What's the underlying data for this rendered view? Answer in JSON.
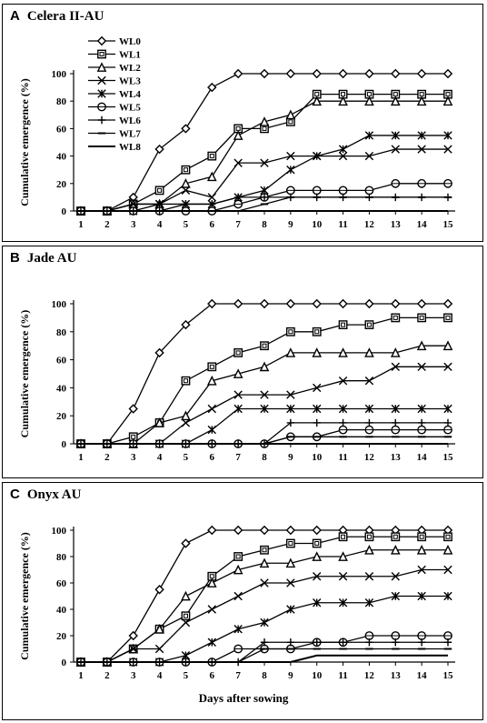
{
  "figure": {
    "xlabel": "Days after sowing"
  },
  "chart_data": [
    {
      "type": "line",
      "panel_letter": "A",
      "title": "Celera II-AU",
      "xlabel": "",
      "ylabel": "Cumulative emergence (%)",
      "x": [
        1,
        2,
        3,
        4,
        5,
        6,
        7,
        8,
        9,
        10,
        11,
        12,
        13,
        14,
        15
      ],
      "xlim": [
        1,
        15
      ],
      "ylim": [
        0,
        100
      ],
      "yticks": [
        0,
        20,
        40,
        60,
        80,
        100
      ],
      "legend": "top-left",
      "series": [
        {
          "name": "WL0",
          "marker": "diamond",
          "values": [
            0,
            0,
            10,
            45,
            60,
            90,
            100,
            100,
            100,
            100,
            100,
            100,
            100,
            100,
            100
          ]
        },
        {
          "name": "WL1",
          "marker": "square",
          "values": [
            0,
            0,
            5,
            15,
            30,
            40,
            60,
            60,
            65,
            85,
            85,
            85,
            85,
            85,
            85
          ]
        },
        {
          "name": "WL2",
          "marker": "triangle",
          "values": [
            0,
            0,
            5,
            5,
            20,
            25,
            55,
            65,
            70,
            80,
            80,
            80,
            80,
            80,
            80
          ]
        },
        {
          "name": "WL3",
          "marker": "x",
          "values": [
            0,
            0,
            5,
            5,
            15,
            10,
            35,
            35,
            40,
            40,
            40,
            40,
            45,
            45,
            45
          ]
        },
        {
          "name": "WL4",
          "marker": "star",
          "values": [
            0,
            0,
            0,
            5,
            5,
            5,
            10,
            15,
            30,
            40,
            45,
            55,
            55,
            55,
            55
          ]
        },
        {
          "name": "WL5",
          "marker": "circle",
          "values": [
            0,
            0,
            0,
            0,
            0,
            0,
            5,
            10,
            15,
            15,
            15,
            15,
            20,
            20,
            20
          ]
        },
        {
          "name": "WL6",
          "marker": "plus",
          "values": [
            0,
            0,
            0,
            0,
            5,
            5,
            10,
            10,
            10,
            10,
            10,
            10,
            10,
            10,
            10
          ]
        },
        {
          "name": "WL7",
          "marker": "dash",
          "values": [
            0,
            0,
            0,
            0,
            0,
            0,
            0,
            5,
            10,
            10,
            10,
            10,
            10,
            10,
            10
          ]
        },
        {
          "name": "WL8",
          "marker": "none",
          "values": [
            0,
            0,
            0,
            0,
            0,
            0,
            0,
            0,
            0,
            0,
            0,
            0,
            0,
            0,
            0
          ]
        }
      ]
    },
    {
      "type": "line",
      "panel_letter": "B",
      "title": "Jade AU",
      "xlabel": "",
      "ylabel": "Cumulative emergence (%)",
      "x": [
        1,
        2,
        3,
        4,
        5,
        6,
        7,
        8,
        9,
        10,
        11,
        12,
        13,
        14,
        15
      ],
      "xlim": [
        1,
        15
      ],
      "ylim": [
        0,
        100
      ],
      "yticks": [
        0,
        20,
        40,
        60,
        80,
        100
      ],
      "legend": "none",
      "series": [
        {
          "name": "WL0",
          "marker": "diamond",
          "values": [
            0,
            0,
            25,
            65,
            85,
            100,
            100,
            100,
            100,
            100,
            100,
            100,
            100,
            100,
            100
          ]
        },
        {
          "name": "WL1",
          "marker": "square",
          "values": [
            0,
            0,
            5,
            15,
            45,
            55,
            65,
            70,
            80,
            80,
            85,
            85,
            90,
            90,
            90
          ]
        },
        {
          "name": "WL2",
          "marker": "triangle",
          "values": [
            0,
            0,
            0,
            15,
            20,
            45,
            50,
            55,
            65,
            65,
            65,
            65,
            65,
            70,
            70
          ]
        },
        {
          "name": "WL3",
          "marker": "x",
          "values": [
            0,
            0,
            0,
            0,
            15,
            25,
            35,
            35,
            35,
            40,
            45,
            45,
            55,
            55,
            55
          ]
        },
        {
          "name": "WL4",
          "marker": "star",
          "values": [
            0,
            0,
            0,
            0,
            0,
            10,
            25,
            25,
            25,
            25,
            25,
            25,
            25,
            25,
            25
          ]
        },
        {
          "name": "WL5",
          "marker": "circle",
          "values": [
            0,
            0,
            0,
            0,
            0,
            0,
            0,
            0,
            5,
            5,
            10,
            10,
            10,
            10,
            10
          ]
        },
        {
          "name": "WL6",
          "marker": "plus",
          "values": [
            0,
            0,
            0,
            0,
            0,
            0,
            0,
            0,
            15,
            15,
            15,
            15,
            15,
            15,
            15
          ]
        },
        {
          "name": "WL7",
          "marker": "dash",
          "values": [
            0,
            0,
            0,
            0,
            0,
            0,
            0,
            0,
            5,
            5,
            5,
            5,
            5,
            5,
            5
          ]
        },
        {
          "name": "WL8",
          "marker": "none",
          "values": [
            0,
            0,
            0,
            0,
            0,
            0,
            0,
            0,
            0,
            0,
            0,
            0,
            0,
            0,
            0
          ]
        }
      ]
    },
    {
      "type": "line",
      "panel_letter": "C",
      "title": "Onyx AU",
      "xlabel": "Days after sowing",
      "ylabel": "Cumulative emergence (%)",
      "x": [
        1,
        2,
        3,
        4,
        5,
        6,
        7,
        8,
        9,
        10,
        11,
        12,
        13,
        14,
        15
      ],
      "xlim": [
        1,
        15
      ],
      "ylim": [
        0,
        100
      ],
      "yticks": [
        0,
        20,
        40,
        60,
        80,
        100
      ],
      "legend": "none",
      "series": [
        {
          "name": "WL0",
          "marker": "diamond",
          "values": [
            0,
            0,
            20,
            55,
            90,
            100,
            100,
            100,
            100,
            100,
            100,
            100,
            100,
            100,
            100
          ]
        },
        {
          "name": "WL1",
          "marker": "square",
          "values": [
            0,
            0,
            10,
            25,
            35,
            65,
            80,
            85,
            90,
            90,
            95,
            95,
            95,
            95,
            95
          ]
        },
        {
          "name": "WL2",
          "marker": "triangle",
          "values": [
            0,
            0,
            10,
            25,
            50,
            60,
            70,
            75,
            75,
            80,
            80,
            85,
            85,
            85,
            85
          ]
        },
        {
          "name": "WL3",
          "marker": "x",
          "values": [
            0,
            0,
            10,
            10,
            30,
            40,
            50,
            60,
            60,
            65,
            65,
            65,
            65,
            70,
            70
          ]
        },
        {
          "name": "WL4",
          "marker": "star",
          "values": [
            0,
            0,
            0,
            0,
            5,
            15,
            25,
            30,
            40,
            45,
            45,
            45,
            50,
            50,
            50
          ]
        },
        {
          "name": "WL5",
          "marker": "circle",
          "values": [
            0,
            0,
            0,
            0,
            0,
            0,
            10,
            10,
            10,
            15,
            15,
            20,
            20,
            20,
            20
          ]
        },
        {
          "name": "WL6",
          "marker": "plus",
          "values": [
            0,
            0,
            0,
            0,
            0,
            0,
            0,
            15,
            15,
            15,
            15,
            15,
            15,
            15,
            15
          ]
        },
        {
          "name": "WL7",
          "marker": "dash",
          "values": [
            0,
            0,
            0,
            0,
            0,
            0,
            0,
            10,
            10,
            10,
            10,
            10,
            10,
            10,
            10
          ]
        },
        {
          "name": "WL8",
          "marker": "none",
          "values": [
            0,
            0,
            0,
            0,
            0,
            0,
            0,
            0,
            0,
            5,
            5,
            5,
            5,
            5,
            5
          ]
        }
      ]
    }
  ]
}
